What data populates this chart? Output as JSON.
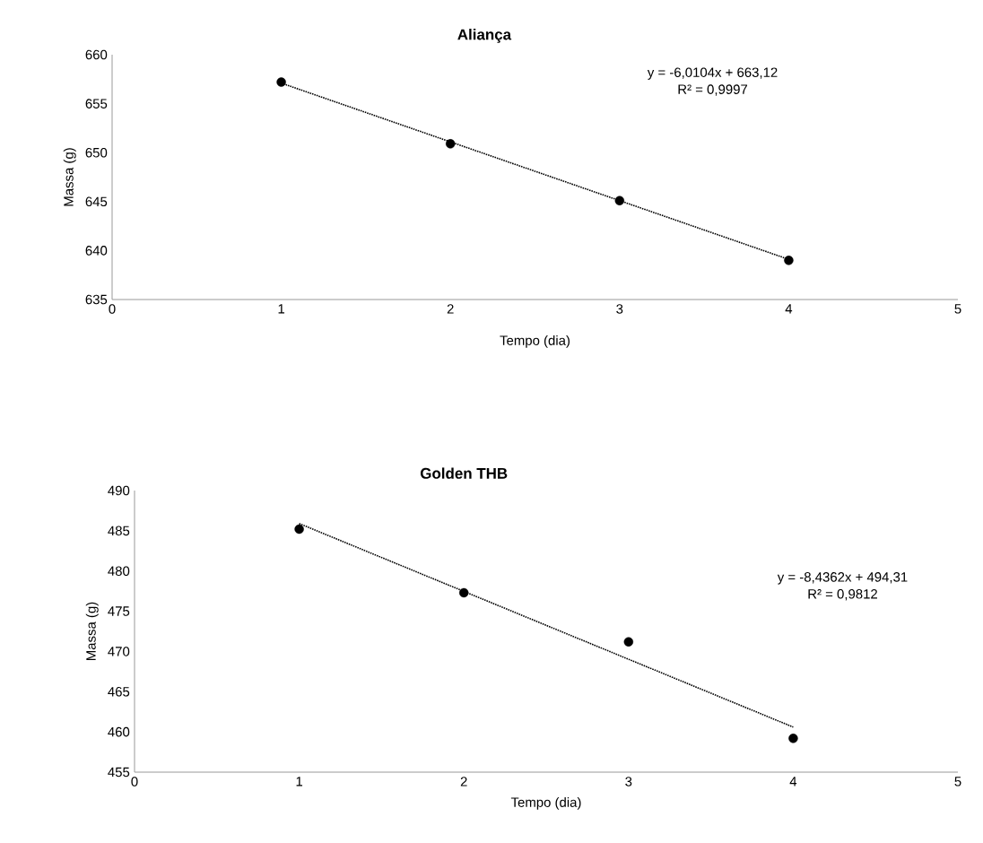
{
  "chart_data": [
    {
      "type": "scatter",
      "title": "Aliança",
      "xlabel": "Tempo (dia)",
      "ylabel": "Massa (g)",
      "xlim": [
        0,
        5
      ],
      "xticks": [
        0,
        1,
        2,
        3,
        4,
        5
      ],
      "ylim": [
        635,
        660
      ],
      "yticks": [
        635,
        640,
        645,
        650,
        655,
        660
      ],
      "series": [
        {
          "x": [
            1,
            2,
            3,
            4
          ],
          "values": [
            657.2,
            650.9,
            645.1,
            639.0
          ],
          "color": "#000000",
          "marker": "circle"
        },
        {
          "type": "line",
          "x": [
            1,
            4
          ],
          "values": [
            657.1,
            639.1
          ],
          "color": "#000000",
          "line_style": "dotted",
          "marker": "none"
        }
      ],
      "annotations": [
        "y = -6,0104x + 663,12",
        "R² = 0,9997"
      ]
    },
    {
      "type": "scatter",
      "title": "Golden THB",
      "xlabel": "Tempo (dia)",
      "ylabel": "Massa (g)",
      "xlim": [
        0,
        5
      ],
      "xticks": [
        0,
        1,
        2,
        3,
        4,
        5
      ],
      "ylim": [
        455,
        490
      ],
      "yticks": [
        455,
        460,
        465,
        470,
        475,
        480,
        485,
        490
      ],
      "series": [
        {
          "x": [
            1,
            2,
            3,
            4
          ],
          "values": [
            485.2,
            477.3,
            471.2,
            459.2
          ],
          "color": "#000000",
          "marker": "circle"
        },
        {
          "type": "line",
          "x": [
            1,
            4
          ],
          "values": [
            485.9,
            460.6
          ],
          "color": "#000000",
          "line_style": "dotted",
          "marker": "none"
        }
      ],
      "annotations": [
        "y = -8,4362x + 494,31",
        "R² = 0,9812"
      ]
    }
  ]
}
